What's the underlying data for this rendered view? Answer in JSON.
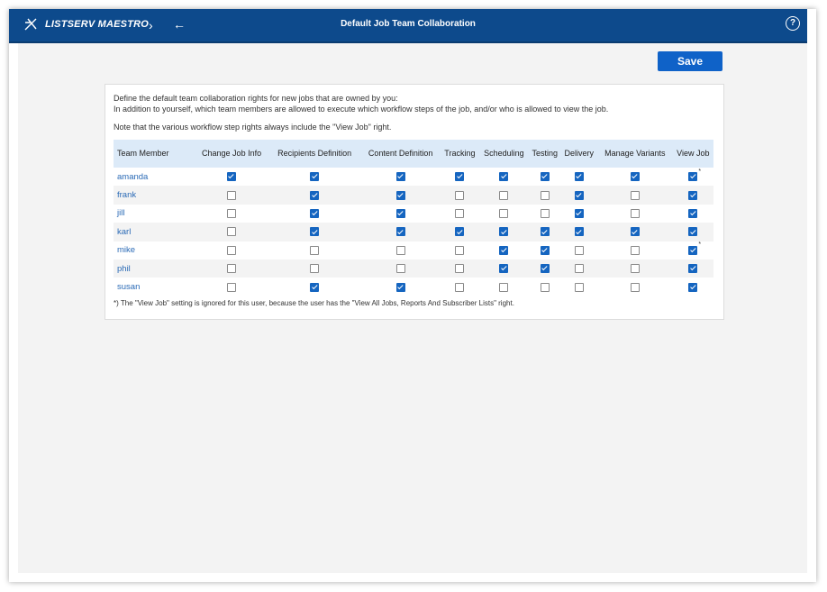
{
  "app": {
    "logo_text": "LISTSERV MAESTRO",
    "title": "Default Job Team Collaboration",
    "nav_forward_glyph": "›",
    "nav_back_glyph": "←",
    "help_glyph": "?"
  },
  "toolbar": {
    "save_label": "Save"
  },
  "intro": {
    "line1": "Define the default team collaboration rights for new jobs that are owned by you:",
    "line2": "In addition to yourself, which team members are allowed to execute which workflow steps of the job, and/or who is allowed to view the job.",
    "note": "Note that the various workflow step rights always include the \"View Job\" right."
  },
  "table": {
    "columns": [
      "Team Member",
      "Change Job Info",
      "Recipients Definition",
      "Content Definition",
      "Tracking",
      "Scheduling",
      "Testing",
      "Delivery",
      "Manage Variants",
      "View Job"
    ],
    "rows": [
      {
        "name": "amanda",
        "rights": [
          true,
          true,
          true,
          true,
          true,
          true,
          true,
          true,
          true
        ],
        "view_job_note": "*"
      },
      {
        "name": "frank",
        "rights": [
          false,
          true,
          true,
          false,
          false,
          false,
          true,
          false,
          true
        ],
        "view_job_note": ""
      },
      {
        "name": "jill",
        "rights": [
          false,
          true,
          true,
          false,
          false,
          false,
          true,
          false,
          true
        ],
        "view_job_note": ""
      },
      {
        "name": "karl",
        "rights": [
          false,
          true,
          true,
          true,
          true,
          true,
          true,
          true,
          true
        ],
        "view_job_note": ""
      },
      {
        "name": "mike",
        "rights": [
          false,
          false,
          false,
          false,
          true,
          true,
          false,
          false,
          true
        ],
        "view_job_note": "*"
      },
      {
        "name": "phil",
        "rights": [
          false,
          false,
          false,
          false,
          true,
          true,
          false,
          false,
          true
        ],
        "view_job_note": ""
      },
      {
        "name": "susan",
        "rights": [
          false,
          true,
          true,
          false,
          false,
          false,
          false,
          false,
          true
        ],
        "view_job_note": ""
      }
    ]
  },
  "footnote": "*) The \"View Job\" setting is ignored for this user, because the user has the \"View All Jobs, Reports And Subscriber Lists\" right.",
  "colors": {
    "header_bar": "#0d4a8c",
    "accent": "#0f62c8",
    "link": "#2a6ab6",
    "table_header": "#dceaf8"
  }
}
